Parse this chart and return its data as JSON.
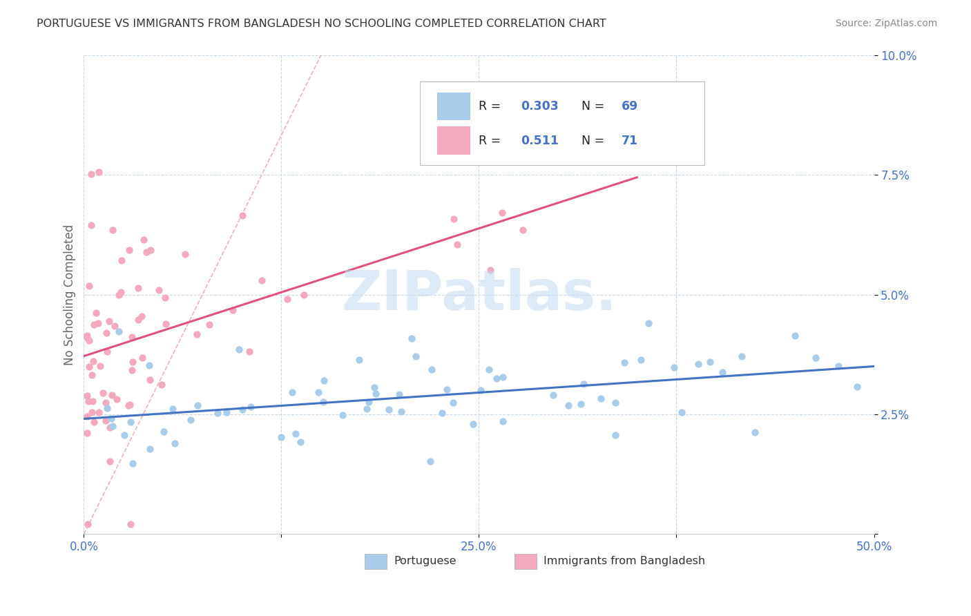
{
  "title": "PORTUGUESE VS IMMIGRANTS FROM BANGLADESH NO SCHOOLING COMPLETED CORRELATION CHART",
  "source": "Source: ZipAtlas.com",
  "ylabel": "No Schooling Completed",
  "x_tick_labels": [
    "0.0%",
    "",
    "25.0%",
    "",
    "50.0%"
  ],
  "y_tick_labels": [
    "",
    "2.5%",
    "5.0%",
    "7.5%",
    "10.0%"
  ],
  "xlim": [
    0.0,
    0.5
  ],
  "ylim": [
    0.0,
    0.1
  ],
  "blue_color": "#A8CCEA",
  "pink_color": "#F4AABE",
  "blue_line_color": "#4472C4",
  "pink_line_color": "#E05080",
  "diag_line_color": "#E8A0B0",
  "blue_R": 0.303,
  "blue_N": 69,
  "pink_R": 0.511,
  "pink_N": 71,
  "legend_label_blue": "Portuguese",
  "legend_label_pink": "Immigrants from Bangladesh",
  "background_color": "#FFFFFF",
  "grid_color": "#C8D8E8",
  "title_color": "#333333",
  "tick_color": "#4472C4",
  "watermark_color": "#C8DCF0",
  "source_color": "#888888"
}
